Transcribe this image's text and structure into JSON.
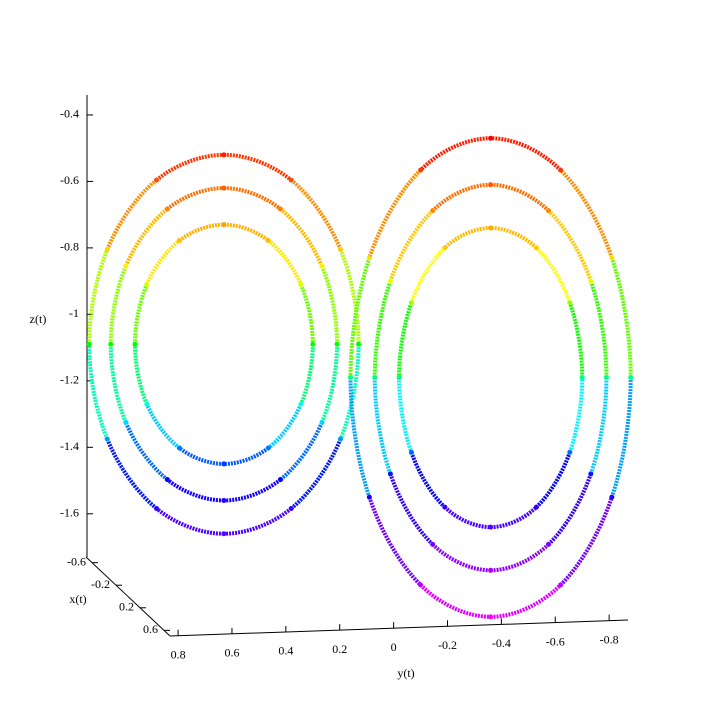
{
  "chart_data": {
    "type": "scatter3d",
    "z_label": "z(t)",
    "x_label": "x(t)",
    "y_label": "y(t)",
    "zlim": [
      -1.73,
      -0.34
    ],
    "zticks": [
      -0.4,
      -0.6,
      -0.8,
      -1,
      -1.2,
      -1.4,
      -1.6
    ],
    "xlim": [
      -0.7,
      0.7
    ],
    "xticks": [
      -0.6,
      -0.2,
      0.2,
      0.6
    ],
    "ylim": [
      0.83,
      -0.87
    ],
    "yticks": [
      0.8,
      0.6,
      0.4,
      0.2,
      0,
      -0.2,
      -0.4,
      -0.6,
      -0.8
    ],
    "colormap": [
      "#ff00ff",
      "#8000ff",
      "#0000ff",
      "#00ffff",
      "#00ff00",
      "#ffff00",
      "#ff8000",
      "#ff0000"
    ],
    "series": [
      {
        "y": [
          1.13,
          1.063,
          0.88,
          0.63,
          0.38,
          0.197,
          0.13,
          0.197,
          0.38,
          0.63,
          0.88,
          1.063
        ],
        "z": [
          -1.09,
          -0.805,
          -0.596,
          -0.52,
          -0.596,
          -0.805,
          -1.09,
          -1.375,
          -1.584,
          -1.66,
          -1.584,
          -1.375
        ]
      },
      {
        "y": [
          1.05,
          0.994,
          0.84,
          0.63,
          0.42,
          0.266,
          0.21,
          0.266,
          0.42,
          0.63,
          0.84,
          0.994
        ],
        "z": [
          -1.09,
          -0.855,
          -0.683,
          -0.62,
          -0.683,
          -0.855,
          -1.09,
          -1.325,
          -1.497,
          -1.56,
          -1.497,
          -1.325
        ]
      },
      {
        "y": [
          0.96,
          0.916,
          0.795,
          0.63,
          0.465,
          0.344,
          0.3,
          0.344,
          0.465,
          0.63,
          0.795,
          0.916
        ],
        "z": [
          -1.09,
          -0.91,
          -0.778,
          -0.73,
          -0.778,
          -0.91,
          -1.09,
          -1.27,
          -1.402,
          -1.45,
          -1.402,
          -1.27
        ]
      },
      {
        "y": [
          -0.88,
          -0.81,
          -0.62,
          -0.36,
          -0.1,
          0.09,
          0.16,
          0.09,
          -0.1,
          -0.36,
          -0.62,
          -0.81
        ],
        "z": [
          -1.19,
          -0.83,
          -0.566,
          -0.47,
          -0.566,
          -0.83,
          -1.19,
          -1.55,
          -1.814,
          -1.91,
          -1.814,
          -1.55
        ]
      },
      {
        "y": [
          -0.79,
          -0.732,
          -0.575,
          -0.36,
          -0.145,
          0.012,
          0.07,
          0.012,
          -0.145,
          -0.36,
          -0.575,
          -0.732
        ],
        "z": [
          -1.19,
          -0.9,
          -0.688,
          -0.61,
          -0.688,
          -0.9,
          -1.19,
          -1.48,
          -1.692,
          -1.77,
          -1.692,
          -1.48
        ]
      },
      {
        "y": [
          -0.7,
          -0.654,
          -0.53,
          -0.36,
          -0.19,
          -0.066,
          -0.02,
          -0.066,
          -0.19,
          -0.36,
          -0.53,
          -0.654
        ],
        "z": [
          -1.19,
          -0.965,
          -0.8,
          -0.74,
          -0.8,
          -0.965,
          -1.19,
          -1.415,
          -1.58,
          -1.64,
          -1.58,
          -1.415
        ]
      }
    ]
  }
}
